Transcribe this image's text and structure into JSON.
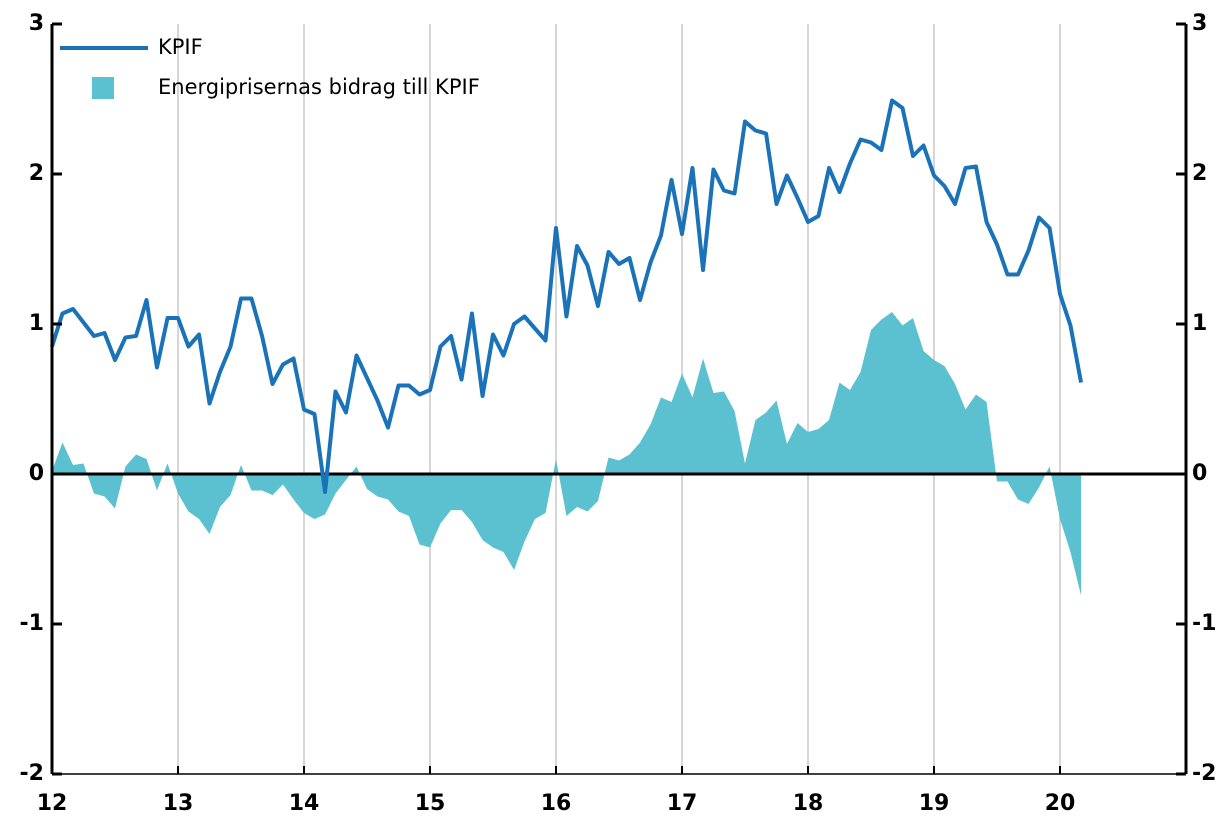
{
  "chart_data": {
    "type": "line",
    "x": [
      12,
      12.083,
      12.167,
      12.25,
      12.333,
      12.417,
      12.5,
      12.583,
      12.667,
      12.75,
      12.833,
      12.917,
      13,
      13.083,
      13.167,
      13.25,
      13.333,
      13.417,
      13.5,
      13.583,
      13.667,
      13.75,
      13.833,
      13.917,
      14,
      14.083,
      14.167,
      14.25,
      14.333,
      14.417,
      14.5,
      14.583,
      14.667,
      14.75,
      14.833,
      14.917,
      15,
      15.083,
      15.167,
      15.25,
      15.333,
      15.417,
      15.5,
      15.583,
      15.667,
      15.75,
      15.833,
      15.917,
      16,
      16.083,
      16.167,
      16.25,
      16.333,
      16.417,
      16.5,
      16.583,
      16.667,
      16.75,
      16.833,
      16.917,
      17,
      17.083,
      17.167,
      17.25,
      17.333,
      17.417,
      17.5,
      17.583,
      17.667,
      17.75,
      17.833,
      17.917,
      18,
      18.083,
      18.167,
      18.25,
      18.333,
      18.417,
      18.5,
      18.583,
      18.667,
      18.75,
      18.833,
      18.917,
      19,
      19.083,
      19.167,
      19.25,
      19.333,
      19.417,
      19.5,
      19.583,
      19.667,
      19.75,
      19.833,
      19.917,
      20,
      20.083,
      20.167
    ],
    "series": [
      {
        "name": "KPIF",
        "type": "line",
        "color": "#1a72b8",
        "values": [
          0.85,
          1.07,
          1.1,
          1.01,
          0.92,
          0.94,
          0.76,
          0.91,
          0.92,
          1.16,
          0.71,
          1.04,
          1.04,
          0.85,
          0.93,
          0.47,
          0.68,
          0.85,
          1.17,
          1.17,
          0.92,
          0.6,
          0.73,
          0.77,
          0.43,
          0.4,
          -0.12,
          0.55,
          0.41,
          0.79,
          0.64,
          0.49,
          0.31,
          0.59,
          0.59,
          0.53,
          0.56,
          0.85,
          0.92,
          0.63,
          1.07,
          0.52,
          0.93,
          0.79,
          1.0,
          1.05,
          0.97,
          0.89,
          1.64,
          1.05,
          1.52,
          1.39,
          1.12,
          1.48,
          1.4,
          1.44,
          1.16,
          1.41,
          1.59,
          1.96,
          1.6,
          2.04,
          1.36,
          2.03,
          1.89,
          1.87,
          2.35,
          2.29,
          2.27,
          1.8,
          1.99,
          1.84,
          1.68,
          1.72,
          2.04,
          1.88,
          2.07,
          2.23,
          2.21,
          2.16,
          2.49,
          2.44,
          2.12,
          2.19,
          1.99,
          1.92,
          1.8,
          2.04,
          2.05,
          1.68,
          1.53,
          1.33,
          1.33,
          1.49,
          1.71,
          1.64,
          1.2,
          0.99,
          0.61
        ]
      },
      {
        "name": "Energiprisernas bidrag till KPIF",
        "type": "area",
        "color": "#5bc0d0",
        "values": [
          0.02,
          0.21,
          0.06,
          0.07,
          -0.13,
          -0.15,
          -0.23,
          0.05,
          0.13,
          0.1,
          -0.11,
          0.07,
          -0.13,
          -0.25,
          -0.3,
          -0.4,
          -0.22,
          -0.14,
          0.06,
          -0.11,
          -0.11,
          -0.14,
          -0.07,
          -0.17,
          -0.26,
          -0.3,
          -0.27,
          -0.13,
          -0.04,
          0.05,
          -0.1,
          -0.15,
          -0.17,
          -0.25,
          -0.28,
          -0.47,
          -0.49,
          -0.33,
          -0.24,
          -0.24,
          -0.32,
          -0.44,
          -0.49,
          -0.52,
          -0.64,
          -0.45,
          -0.3,
          -0.26,
          0.1,
          -0.28,
          -0.22,
          -0.25,
          -0.18,
          0.11,
          0.09,
          0.13,
          0.21,
          0.33,
          0.51,
          0.48,
          0.67,
          0.51,
          0.77,
          0.54,
          0.55,
          0.42,
          0.07,
          0.36,
          0.41,
          0.49,
          0.2,
          0.34,
          0.28,
          0.3,
          0.36,
          0.61,
          0.56,
          0.68,
          0.96,
          1.03,
          1.08,
          0.99,
          1.04,
          0.82,
          0.76,
          0.72,
          0.6,
          0.43,
          0.53,
          0.48,
          -0.05,
          -0.05,
          -0.17,
          -0.2,
          -0.09,
          0.05,
          -0.3,
          -0.52,
          -0.81
        ]
      }
    ],
    "xlim": [
      12,
      21
    ],
    "xticks": [
      12,
      13,
      14,
      15,
      16,
      17,
      18,
      19,
      20
    ],
    "ylim": [
      -2,
      3
    ],
    "yticks": [
      -2,
      -1,
      0,
      1,
      2,
      3
    ],
    "y2lim": [
      -2,
      3
    ],
    "y2ticks": [
      -2,
      -1,
      0,
      1,
      2,
      3
    ],
    "grid": "x",
    "legend": "top-left"
  }
}
